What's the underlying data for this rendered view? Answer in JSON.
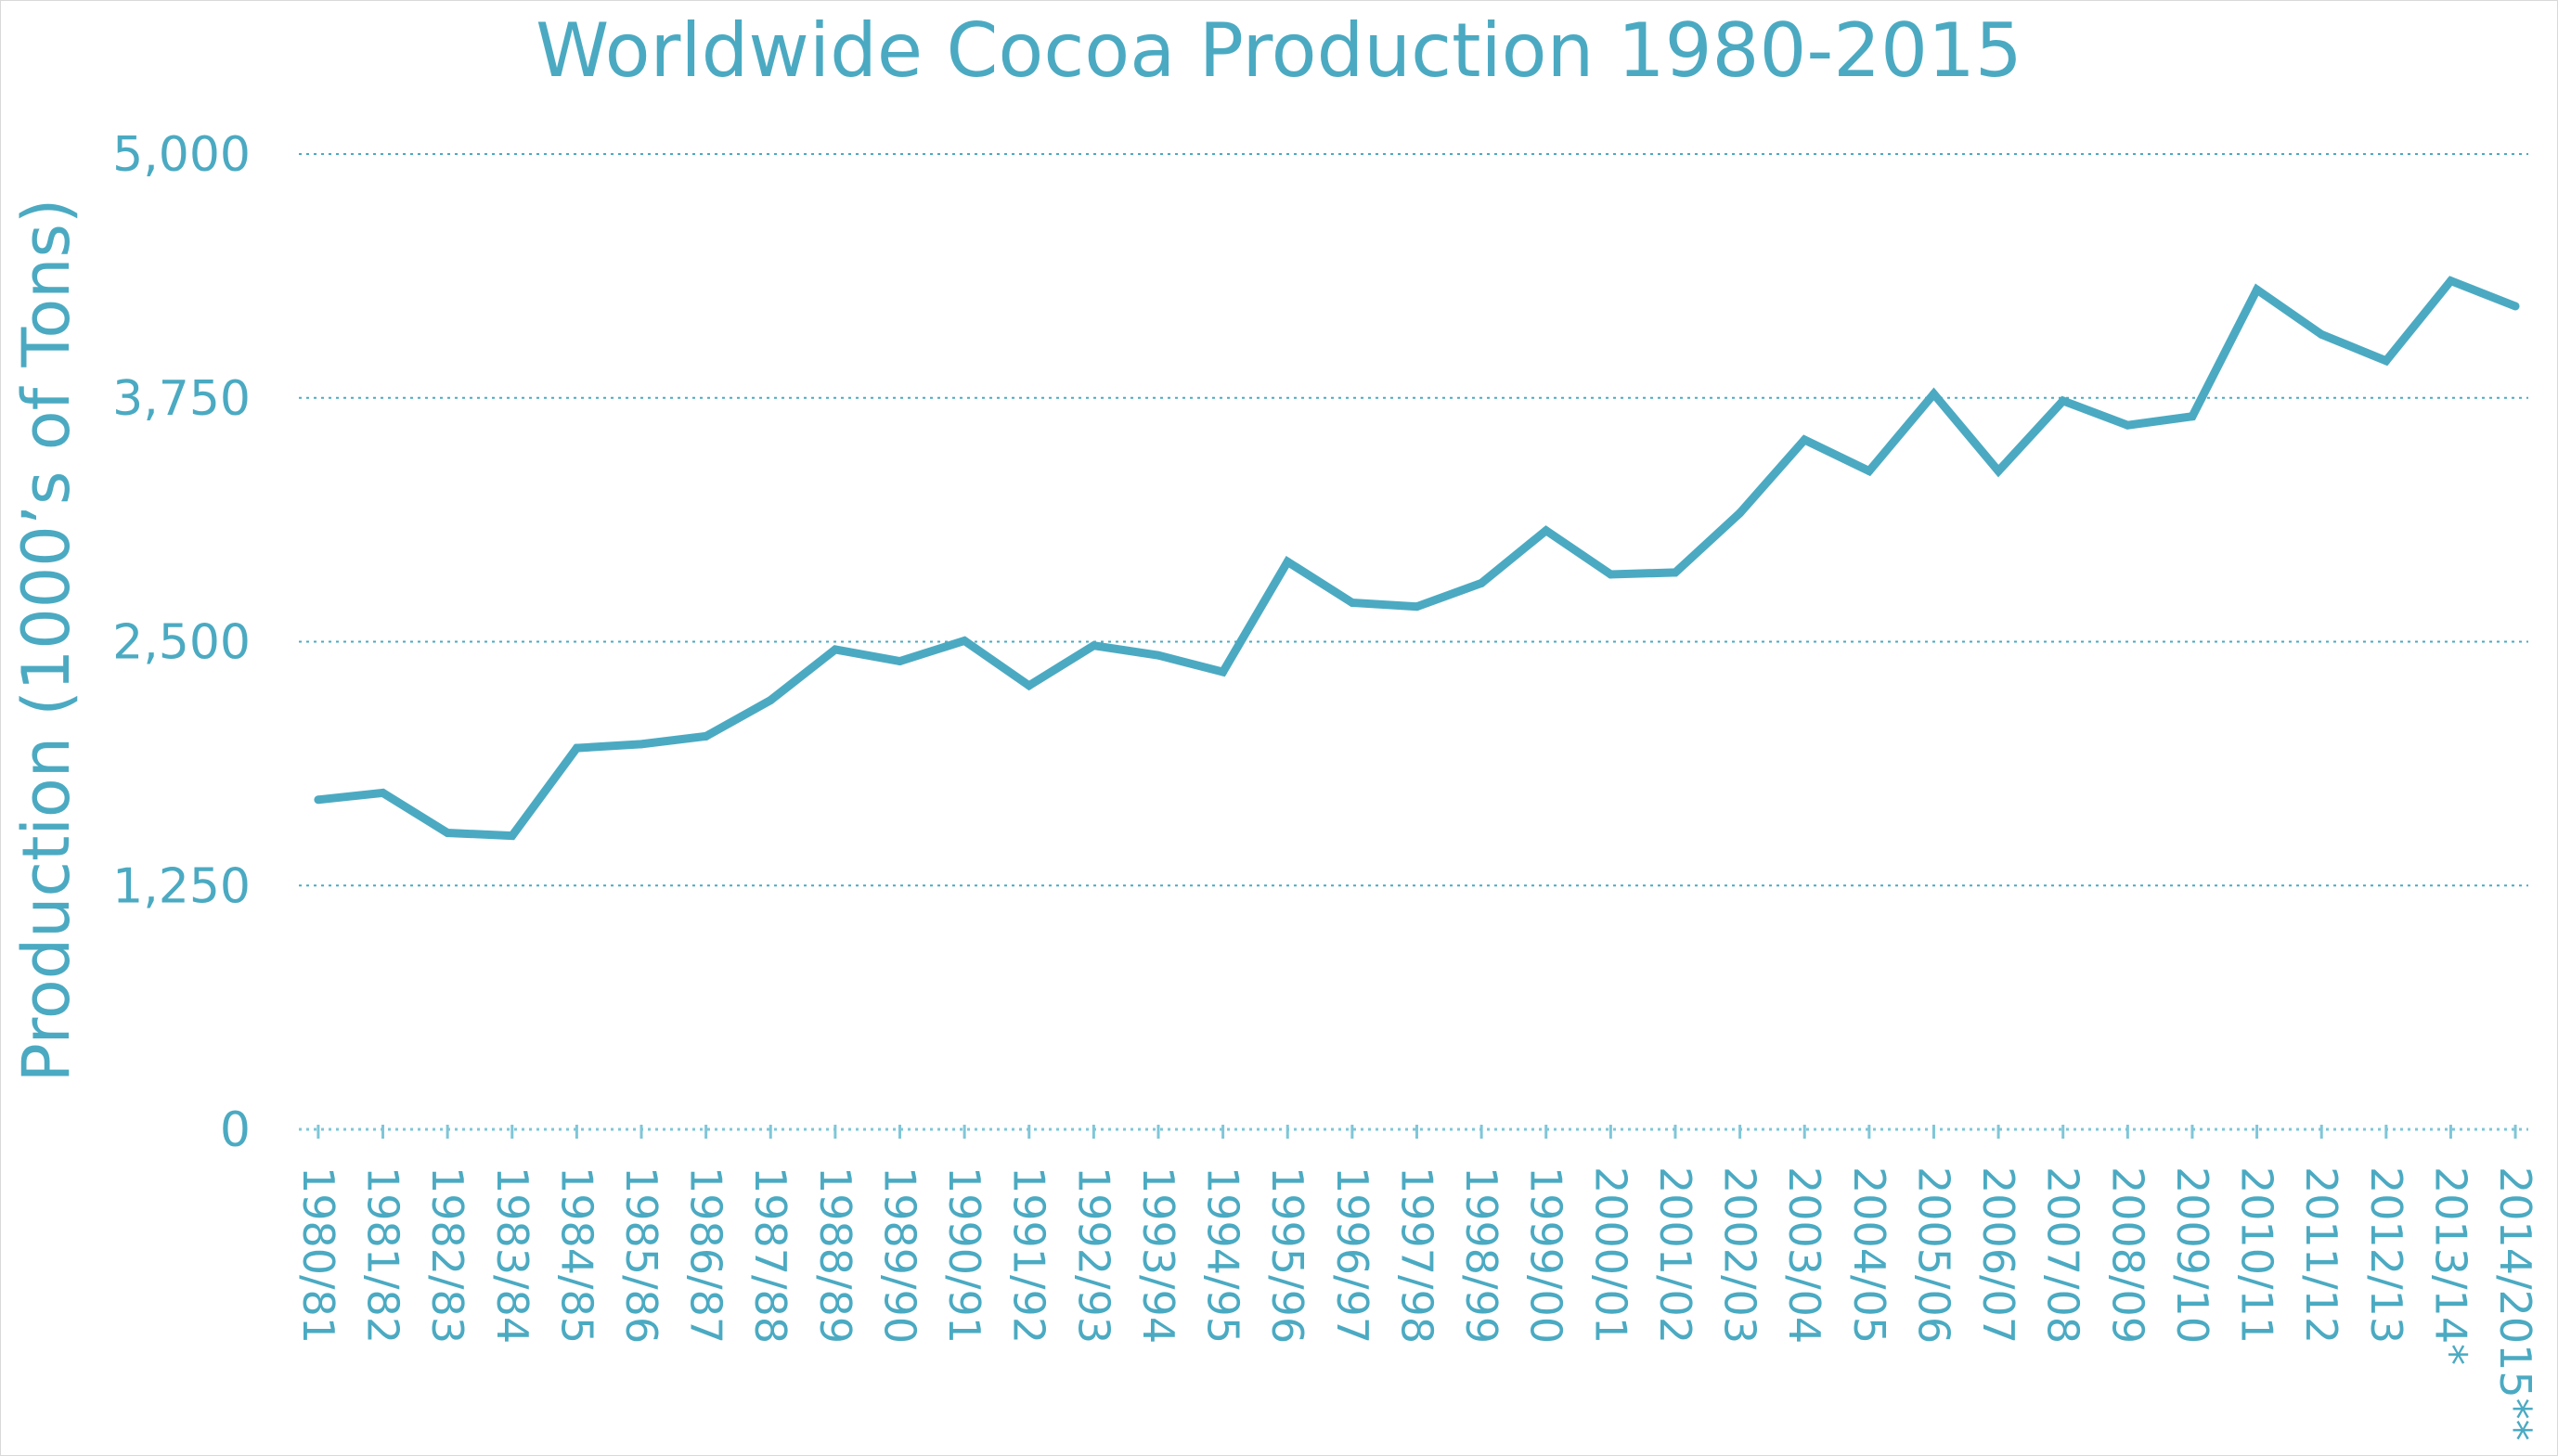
{
  "chart_data": {
    "type": "line",
    "title": "Worldwide Cocoa Production 1980-2015",
    "xlabel": "",
    "ylabel": "Production (1000’s of Tons)",
    "ylim": [
      0,
      5000
    ],
    "yticks": [
      0,
      1250,
      2500,
      3750,
      5000
    ],
    "ytick_labels": [
      "0",
      "1,250",
      "2,500",
      "3,750",
      "5,000"
    ],
    "grid": true,
    "legend": "none",
    "categories": [
      "1980/81",
      "1981/82",
      "1982/83",
      "1983/84",
      "1984/85",
      "1985/86",
      "1986/87",
      "1987/88",
      "1988/89",
      "1989/90",
      "1990/91",
      "1991/92",
      "1992/93",
      "1993/94",
      "1994/95",
      "1995/96",
      "1996/97",
      "1997/98",
      "1998/99",
      "1999/00",
      "2000/01",
      "2001/02",
      "2002/03",
      "2003/04",
      "2004/05",
      "2005/06",
      "2006/07",
      "2007/08",
      "2008/09",
      "2009/10",
      "2010/11",
      "2011/12",
      "2012/13",
      "2013/14*",
      "2014/2015**"
    ],
    "series": [
      {
        "values": [
          1690,
          1725,
          1520,
          1505,
          1955,
          1975,
          2015,
          2200,
          2460,
          2400,
          2505,
          2275,
          2480,
          2430,
          2345,
          2910,
          2700,
          2680,
          2800,
          3070,
          2845,
          2855,
          3160,
          3535,
          3375,
          3770,
          3375,
          3735,
          3610,
          3655,
          4305,
          4075,
          3940,
          4350,
          4220
        ],
        "color": "#4baac2"
      }
    ],
    "colors": {
      "line": "#4baac2",
      "text": "#4baac2",
      "grid": "#4baac2",
      "axis": "#7fc6d8"
    }
  }
}
